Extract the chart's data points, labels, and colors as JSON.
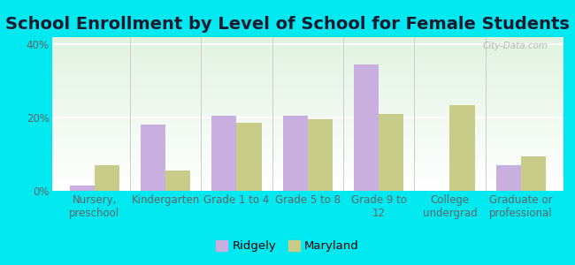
{
  "title": "School Enrollment by Level of School for Female Students",
  "categories": [
    "Nursery,\npreschool",
    "Kindergarten",
    "Grade 1 to 4",
    "Grade 5 to 8",
    "Grade 9 to\n12",
    "College\nundergrad",
    "Graduate or\nprofessional"
  ],
  "ridgely": [
    1.5,
    18.0,
    20.5,
    20.5,
    34.5,
    0.0,
    7.0
  ],
  "maryland": [
    7.0,
    5.5,
    18.5,
    19.5,
    21.0,
    23.5,
    9.5
  ],
  "ridgely_color": "#c9aee0",
  "maryland_color": "#c8cc88",
  "background_outer": "#00e8f0",
  "background_plot_top": "#e8f5e8",
  "background_plot_bottom": "#f8fff0",
  "ylim": [
    0,
    42
  ],
  "yticks": [
    0,
    20,
    40
  ],
  "ytick_labels": [
    "0%",
    "20%",
    "40%"
  ],
  "title_fontsize": 14,
  "tick_fontsize": 8.5,
  "legend_fontsize": 9.5,
  "bar_width": 0.35
}
